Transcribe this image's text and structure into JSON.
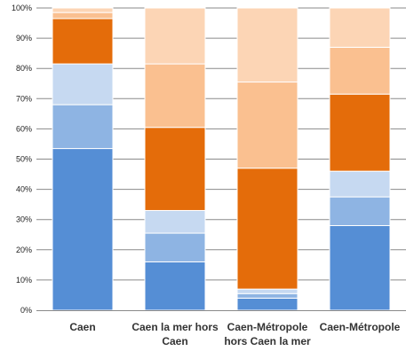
{
  "chart_data": {
    "type": "bar",
    "stacked": true,
    "percent": true,
    "categories": [
      [
        "Caen"
      ],
      [
        "Caen la mer hors",
        "Caen"
      ],
      [
        "Caen-Métropole",
        "hors Caen la mer"
      ],
      [
        "Caen-Métropole"
      ]
    ],
    "ylim": [
      0,
      100
    ],
    "yticks": [
      "0%",
      "10%",
      "20%",
      "30%",
      "40%",
      "50%",
      "60%",
      "70%",
      "80%",
      "90%",
      "100%"
    ],
    "grid": true,
    "legend": "none",
    "series": [
      {
        "color": "#558ed5",
        "values": [
          53.5,
          16,
          4,
          28
        ]
      },
      {
        "color": "#8eb4e3",
        "values": [
          14.5,
          9.5,
          1.5,
          9.5
        ]
      },
      {
        "color": "#c6d9f1",
        "values": [
          13.5,
          7.5,
          1.5,
          8.5
        ]
      },
      {
        "color": "#e46c0a",
        "values": [
          15,
          27.5,
          40,
          25.5
        ]
      },
      {
        "color": "#fac090",
        "values": [
          2,
          21,
          28.5,
          15.5
        ]
      },
      {
        "color": "#fcd5b5",
        "values": [
          1.5,
          18.5,
          24.5,
          13
        ]
      }
    ]
  }
}
